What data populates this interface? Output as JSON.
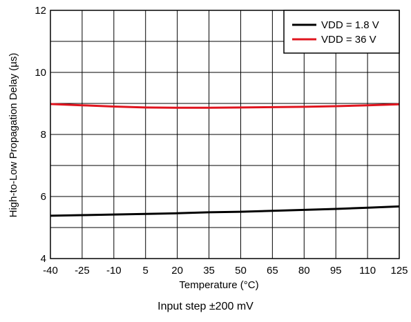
{
  "chart_data": {
    "type": "line",
    "xlabel": "Temperature (°C)",
    "ylabel": "High-to-Low Propagation Delay (µs)",
    "x_ticks": [
      "-40",
      "-25",
      "-10",
      "5",
      "20",
      "35",
      "50",
      "65",
      "80",
      "95",
      "110",
      "125"
    ],
    "y_ticks": [
      "4",
      "6",
      "8",
      "10",
      "12"
    ],
    "xlim": [
      -40,
      125
    ],
    "ylim": [
      4,
      12
    ],
    "grid": true,
    "legend_position": "top-right",
    "series": [
      {
        "name": "VDD = 1.8 V",
        "color": "#000000",
        "x": [
          -40,
          -25,
          -10,
          5,
          20,
          35,
          50,
          65,
          80,
          95,
          110,
          125
        ],
        "y": [
          5.38,
          5.4,
          5.42,
          5.44,
          5.46,
          5.49,
          5.51,
          5.54,
          5.57,
          5.6,
          5.64,
          5.68
        ]
      },
      {
        "name": "VDD = 36 V",
        "color": "#e0141e",
        "x": [
          -40,
          -25,
          -10,
          5,
          20,
          35,
          50,
          65,
          80,
          95,
          110,
          125
        ],
        "y": [
          8.98,
          8.94,
          8.9,
          8.87,
          8.86,
          8.86,
          8.87,
          8.88,
          8.89,
          8.91,
          8.94,
          8.97
        ]
      }
    ]
  },
  "caption": "Input step ±200 mV"
}
